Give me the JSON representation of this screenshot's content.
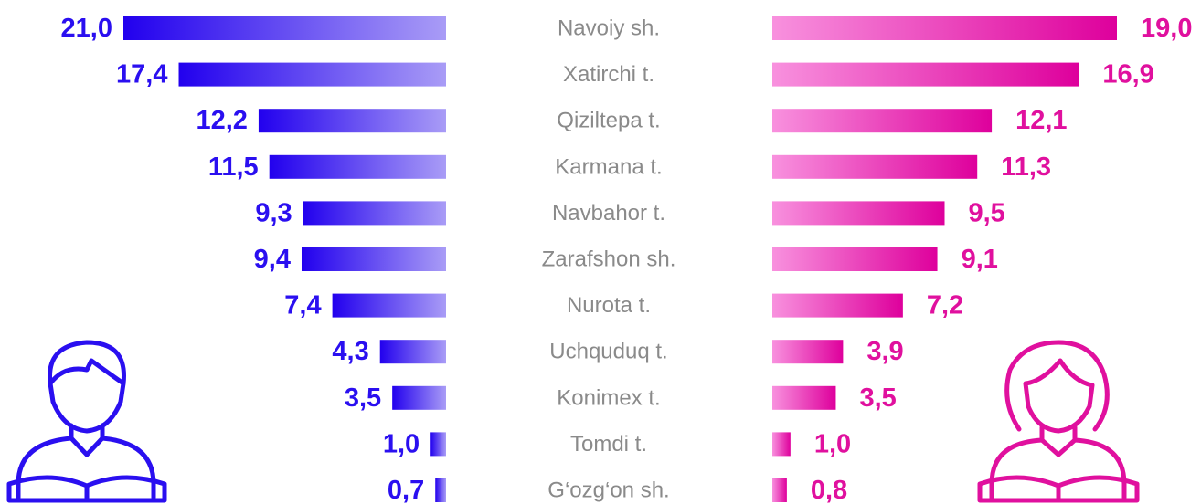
{
  "chart_data": {
    "type": "butterfly-bar",
    "categories": [
      "Navoiy sh.",
      "Xatirchi t.",
      "Qiziltepa t.",
      "Karmana t.",
      "Navbahor t.",
      "Zarafshon sh.",
      "Nurota t.",
      "Uchquduq t.",
      "Konimex t.",
      "Tomdi t.",
      "G‘ozg‘on sh."
    ],
    "series": [
      {
        "color": "#2a0ff0",
        "xlim": [
          0,
          21
        ],
        "values": [
          21.0,
          17.4,
          12.2,
          11.5,
          9.3,
          9.4,
          7.4,
          4.3,
          3.5,
          1.0,
          0.7
        ],
        "value_labels": [
          "21,0",
          "17,4",
          "12,2",
          "11,5",
          "9,3",
          "9,4",
          "7,4",
          "4,3",
          "3,5",
          "1,0",
          "0,7"
        ]
      },
      {
        "color": "#e0109e",
        "xlim": [
          0,
          19
        ],
        "values": [
          19.0,
          16.9,
          12.1,
          11.3,
          9.5,
          9.1,
          7.2,
          3.9,
          3.5,
          1.0,
          0.8
        ],
        "value_labels": [
          "19,0",
          "16,9",
          "12,1",
          "11,3",
          "9,5",
          "9,1",
          "7,2",
          "3,9",
          "3,5",
          "1,0",
          "0,8"
        ]
      }
    ]
  }
}
